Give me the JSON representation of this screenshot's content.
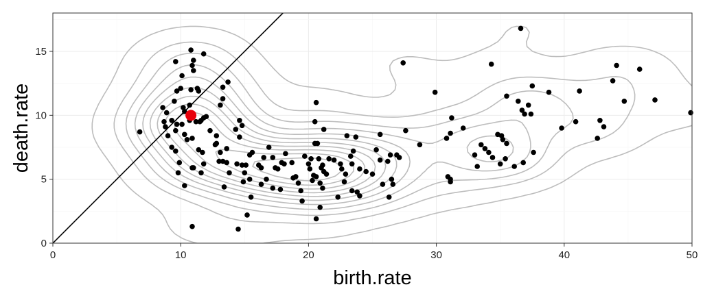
{
  "chart_data": {
    "type": "scatter",
    "xlabel": "birth.rate",
    "ylabel": "death.rate",
    "xlim": [
      0,
      50
    ],
    "ylim": [
      0,
      18
    ],
    "x_ticks": [
      0,
      10,
      20,
      30,
      40,
      50
    ],
    "y_ticks": [
      0,
      5,
      10,
      15
    ],
    "grid": true,
    "colors": {
      "points": "#000000",
      "highlight": "#e8000b",
      "contour": "#bdbdbd",
      "diagonal": "#000000",
      "grid_major": "#ebebeb",
      "grid_minor": "#f5f5f5",
      "border": "#333333"
    },
    "reference_line": {
      "type": "identity",
      "description": "y = x"
    },
    "highlight_point": {
      "x": 10.8,
      "y": 10.0
    },
    "points": [
      [
        6.8,
        8.7
      ],
      [
        8.6,
        10.6
      ],
      [
        8.9,
        10.2
      ],
      [
        8.7,
        9.5
      ],
      [
        8.8,
        9.1
      ],
      [
        9.0,
        8.4
      ],
      [
        9.3,
        9.6
      ],
      [
        9.3,
        7.5
      ],
      [
        9.6,
        8.8
      ],
      [
        9.7,
        9.3
      ],
      [
        9.5,
        11.1
      ],
      [
        9.7,
        11.9
      ],
      [
        9.6,
        14.2
      ],
      [
        10.1,
        13.1
      ],
      [
        10.0,
        12.1
      ],
      [
        10.2,
        10.6
      ],
      [
        10.3,
        10.3
      ],
      [
        10.1,
        9.3
      ],
      [
        10.3,
        8.5
      ],
      [
        10.5,
        8.1
      ],
      [
        10.9,
        8.2
      ],
      [
        10.7,
        9.6
      ],
      [
        10.7,
        10.8
      ],
      [
        10.8,
        12.0
      ],
      [
        10.9,
        13.9
      ],
      [
        10.8,
        15.1
      ],
      [
        11.0,
        14.3
      ],
      [
        11.0,
        13.5
      ],
      [
        11.3,
        12.1
      ],
      [
        11.4,
        11.9
      ],
      [
        11.5,
        9.5
      ],
      [
        11.8,
        9.8
      ],
      [
        12.0,
        9.9
      ],
      [
        11.2,
        9.5
      ],
      [
        11.6,
        9.6
      ],
      [
        11.8,
        14.8
      ],
      [
        11.4,
        7.3
      ],
      [
        11.7,
        7.1
      ],
      [
        11.8,
        6.2
      ],
      [
        11.6,
        5.5
      ],
      [
        10.9,
        5.9
      ],
      [
        10.3,
        4.5
      ],
      [
        9.8,
        5.5
      ],
      [
        9.9,
        6.3
      ],
      [
        9.6,
        7.2
      ],
      [
        11.0,
        5.9
      ],
      [
        12.3,
        8.8
      ],
      [
        12.8,
        8.4
      ],
      [
        12.8,
        7.8
      ],
      [
        13.0,
        6.4
      ],
      [
        13.3,
        6.4
      ],
      [
        13.6,
        6.3
      ],
      [
        13.3,
        12.2
      ],
      [
        13.7,
        12.6
      ],
      [
        13.3,
        11.3
      ],
      [
        13.1,
        10.8
      ],
      [
        14.3,
        8.9
      ],
      [
        14.8,
        9.2
      ],
      [
        14.6,
        9.6
      ],
      [
        14.6,
        8.3
      ],
      [
        13.6,
        7.4
      ],
      [
        13.1,
        7.1
      ],
      [
        12.7,
        7.7
      ],
      [
        13.8,
        5.5
      ],
      [
        13.4,
        4.4
      ],
      [
        14.4,
        6.2
      ],
      [
        14.8,
        6.1
      ],
      [
        15.0,
        5.5
      ],
      [
        14.9,
        4.8
      ],
      [
        15.1,
        6.1
      ],
      [
        15.4,
        6.9
      ],
      [
        15.6,
        7.1
      ],
      [
        15.4,
        5.0
      ],
      [
        15.2,
        2.2
      ],
      [
        14.5,
        1.1
      ],
      [
        10.9,
        1.3
      ],
      [
        16.1,
        6.1
      ],
      [
        16.3,
        5.9
      ],
      [
        16.7,
        5.0
      ],
      [
        16.3,
        4.6
      ],
      [
        15.5,
        3.6
      ],
      [
        16.5,
        6.7
      ],
      [
        16.9,
        7.5
      ],
      [
        17.2,
        6.7
      ],
      [
        17.4,
        5.9
      ],
      [
        17.6,
        5.8
      ],
      [
        17.2,
        4.3
      ],
      [
        17.8,
        4.2
      ],
      [
        17.9,
        6.3
      ],
      [
        18.1,
        6.2
      ],
      [
        18.2,
        7.0
      ],
      [
        18.7,
        6.3
      ],
      [
        18.8,
        5.1
      ],
      [
        19.0,
        5.2
      ],
      [
        19.2,
        4.7
      ],
      [
        19.4,
        4.1
      ],
      [
        19.5,
        3.3
      ],
      [
        19.7,
        6.8
      ],
      [
        20.0,
        6.2
      ],
      [
        20.1,
        5.8
      ],
      [
        20.2,
        6.6
      ],
      [
        20.4,
        5.3
      ],
      [
        20.6,
        5.2
      ],
      [
        20.3,
        4.9
      ],
      [
        20.5,
        7.8
      ],
      [
        20.7,
        7.8
      ],
      [
        20.5,
        9.5
      ],
      [
        20.6,
        11.0
      ],
      [
        20.8,
        6.6
      ],
      [
        21.0,
        5.9
      ],
      [
        21.1,
        6.1
      ],
      [
        21.2,
        5.6
      ],
      [
        21.4,
        5.4
      ],
      [
        20.9,
        4.7
      ],
      [
        21.1,
        4.3
      ],
      [
        20.9,
        2.8
      ],
      [
        20.6,
        1.9
      ],
      [
        21.2,
        8.9
      ],
      [
        21.6,
        6.6
      ],
      [
        22.0,
        6.5
      ],
      [
        22.3,
        3.6
      ],
      [
        22.5,
        6.2
      ],
      [
        22.6,
        5.8
      ],
      [
        22.8,
        4.8
      ],
      [
        22.9,
        5.4
      ],
      [
        23.0,
        8.4
      ],
      [
        23.3,
        6.8
      ],
      [
        23.4,
        6.2
      ],
      [
        23.5,
        7.2
      ],
      [
        23.4,
        4.1
      ],
      [
        23.8,
        4.0
      ],
      [
        24.0,
        3.7
      ],
      [
        23.7,
        8.3
      ],
      [
        24.0,
        5.8
      ],
      [
        24.5,
        5.6
      ],
      [
        25.0,
        5.4
      ],
      [
        25.3,
        7.3
      ],
      [
        25.6,
        6.5
      ],
      [
        25.6,
        8.5
      ],
      [
        25.8,
        4.6
      ],
      [
        26.2,
        6.4
      ],
      [
        26.4,
        6.9
      ],
      [
        26.3,
        3.6
      ],
      [
        26.5,
        5.0
      ],
      [
        26.6,
        4.6
      ],
      [
        26.9,
        6.9
      ],
      [
        27.1,
        6.7
      ],
      [
        27.4,
        14.1
      ],
      [
        27.6,
        8.8
      ],
      [
        28.7,
        7.7
      ],
      [
        29.9,
        11.8
      ],
      [
        30.8,
        8.2
      ],
      [
        30.9,
        5.2
      ],
      [
        31.1,
        5.0
      ],
      [
        31.1,
        4.8
      ],
      [
        31.2,
        9.8
      ],
      [
        31.1,
        8.6
      ],
      [
        32.1,
        9.0
      ],
      [
        33.0,
        6.9
      ],
      [
        33.2,
        6.0
      ],
      [
        33.5,
        7.7
      ],
      [
        33.8,
        7.4
      ],
      [
        34.1,
        7.1
      ],
      [
        34.4,
        6.7
      ],
      [
        34.3,
        14.0
      ],
      [
        34.8,
        8.5
      ],
      [
        35.0,
        6.2
      ],
      [
        35.1,
        8.4
      ],
      [
        35.2,
        8.1
      ],
      [
        35.5,
        7.8
      ],
      [
        35.4,
        6.6
      ],
      [
        35.5,
        11.5
      ],
      [
        36.1,
        6.0
      ],
      [
        36.4,
        11.1
      ],
      [
        36.6,
        16.8
      ],
      [
        36.8,
        6.3
      ],
      [
        36.7,
        10.4
      ],
      [
        36.9,
        10.1
      ],
      [
        37.2,
        10.8
      ],
      [
        37.4,
        10.1
      ],
      [
        37.5,
        12.3
      ],
      [
        37.6,
        7.1
      ],
      [
        38.8,
        11.8
      ],
      [
        39.8,
        9.0
      ],
      [
        40.9,
        9.5
      ],
      [
        41.2,
        11.9
      ],
      [
        42.6,
        8.2
      ],
      [
        42.8,
        9.6
      ],
      [
        43.1,
        9.1
      ],
      [
        43.8,
        12.7
      ],
      [
        44.1,
        13.9
      ],
      [
        44.7,
        11.1
      ],
      [
        45.9,
        13.6
      ],
      [
        47.1,
        11.2
      ],
      [
        49.9,
        10.2
      ]
    ]
  }
}
